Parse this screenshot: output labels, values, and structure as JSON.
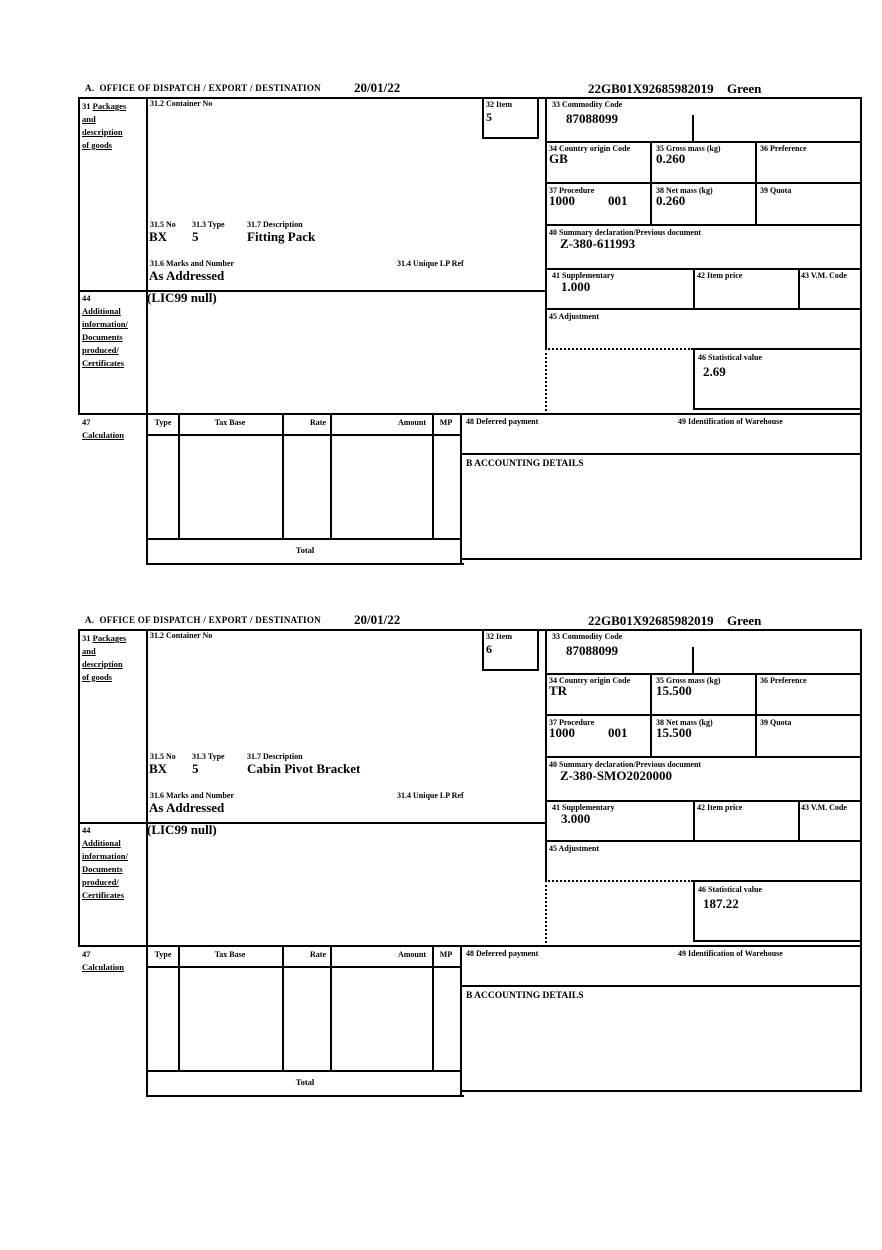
{
  "header": {
    "title": "A.  OFFICE OF DISPATCH / EXPORT / DESTINATION",
    "date": "20/01/22",
    "entry_no": "22GB01X92685982019",
    "route": "Green"
  },
  "labels": {
    "box31_num": "31 ",
    "box31_word": "Packages",
    "box31_lines": [
      "and",
      "description",
      "of goods"
    ],
    "box31_2": "31.2 Container No",
    "box32": "32 Item",
    "box33": "33 Commodity Code",
    "box34": "34 Country origin Code",
    "box35": "35 Gross mass (kg)",
    "box36": "36 Preference",
    "box37": "37 Procedure",
    "box38": "38 Net mass (kg)",
    "box39": "39 Quota",
    "box40": "40 Summary declaration/Previous document",
    "box41": "41 Supplementary",
    "box42": "42 Item price",
    "box43": "43 V.M. Code",
    "box44_num": "44",
    "box44_lines": [
      "Additional",
      "information/",
      "Documents",
      "produced/",
      "Certificates"
    ],
    "box45": "45 Adjustment",
    "box46": "46 Statistical value",
    "box47_num": "47",
    "box47_word": "Calculation",
    "box31_5": "31.5 No",
    "box31_3": "31.3 Type",
    "box31_7": "31.7 Description",
    "box31_6": "31.6 Marks and Number",
    "box31_4": "31.4 Unique LP Ref",
    "box48": "48 Deferred payment",
    "box49": "49 Identification of Warehouse",
    "accounting": "B ACCOUNTING DETAILS",
    "total": "Total",
    "calc_headers": [
      "Type",
      "Tax Base",
      "Rate",
      "Amount",
      "MP"
    ]
  },
  "sections": [
    {
      "item": "5",
      "commodity_code": "87088099",
      "country_origin": "GB",
      "gross_mass": "0.260",
      "procedure_code": "1000",
      "procedure_code_2": "001",
      "net_mass": "0.260",
      "previous_document": "Z-380-611993",
      "supplementary": "1.000",
      "statistical_value": "2.69",
      "package_no": "BX",
      "package_type": "5",
      "goods_description": "Fitting Pack",
      "marks_and_number": "As Addressed",
      "additional_information": "(LIC99 null)"
    },
    {
      "item": "6",
      "commodity_code": "87088099",
      "country_origin": "TR",
      "gross_mass": "15.500",
      "procedure_code": "1000",
      "procedure_code_2": "001",
      "net_mass": "15.500",
      "previous_document": "Z-380-SMO2020000",
      "supplementary": "3.000",
      "statistical_value": "187.22",
      "package_no": "BX",
      "package_type": "5",
      "goods_description": "Cabin Pivot Bracket",
      "marks_and_number": "As Addressed",
      "additional_information": "(LIC99 null)"
    }
  ]
}
